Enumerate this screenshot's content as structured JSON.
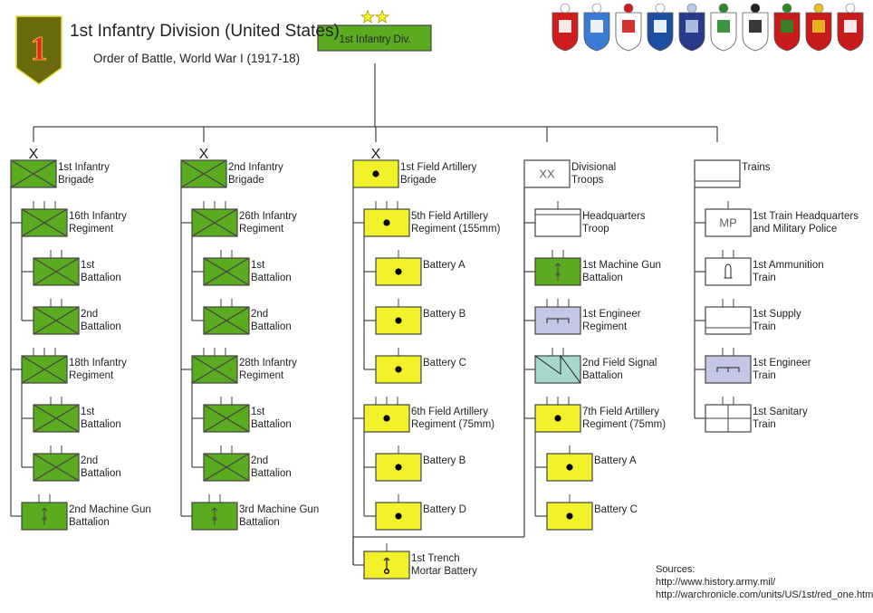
{
  "header": {
    "title": "1st Infantry Division (United States)",
    "subtitle": "Order of Battle, World War I (1917-18)",
    "insignia_numeral": "1",
    "division_label": "1st Infantry Div.",
    "division_rank_stars": 2
  },
  "colors": {
    "infantry": "#5aab1f",
    "artillery": "#f2f22a",
    "engineer": "#c3c6e4",
    "signal": "#a6d6cc",
    "plain": "#ffffff",
    "insignia": "#6b6a0c",
    "insignia_numeral": "#e8261c"
  },
  "columns": [
    {
      "marker": "X",
      "units": [
        {
          "lines": [
            "1st Infantry",
            "Brigade"
          ],
          "symbol": "infantry",
          "fill": "infantry",
          "level": 0
        },
        {
          "lines": [
            "16th Infantry",
            "Regiment"
          ],
          "symbol": "infantry",
          "fill": "infantry",
          "level": 1,
          "ticks": 3
        },
        {
          "lines": [
            "1st",
            "Battalion"
          ],
          "symbol": "infantry",
          "fill": "infantry",
          "level": 2,
          "ticks": 2
        },
        {
          "lines": [
            "2nd",
            "Battalion"
          ],
          "symbol": "infantry",
          "fill": "infantry",
          "level": 2,
          "ticks": 2
        },
        {
          "lines": [
            "18th Infantry",
            "Regiment"
          ],
          "symbol": "infantry",
          "fill": "infantry",
          "level": 1,
          "ticks": 3
        },
        {
          "lines": [
            "1st",
            "Battalion"
          ],
          "symbol": "infantry",
          "fill": "infantry",
          "level": 2,
          "ticks": 2
        },
        {
          "lines": [
            "2nd",
            "Battalion"
          ],
          "symbol": "infantry",
          "fill": "infantry",
          "level": 2,
          "ticks": 2
        },
        {
          "lines": [
            "2nd Machine Gun",
            "Battalion"
          ],
          "symbol": "machine-gun",
          "fill": "infantry",
          "level": 1,
          "ticks": 2
        }
      ]
    },
    {
      "marker": "X",
      "units": [
        {
          "lines": [
            "2nd Infantry",
            "Brigade"
          ],
          "symbol": "infantry",
          "fill": "infantry",
          "level": 0
        },
        {
          "lines": [
            "26th Infantry",
            "Regiment"
          ],
          "symbol": "infantry",
          "fill": "infantry",
          "level": 1,
          "ticks": 3
        },
        {
          "lines": [
            "1st",
            "Battalion"
          ],
          "symbol": "infantry",
          "fill": "infantry",
          "level": 2,
          "ticks": 2
        },
        {
          "lines": [
            "2nd",
            "Battalion"
          ],
          "symbol": "infantry",
          "fill": "infantry",
          "level": 2,
          "ticks": 2
        },
        {
          "lines": [
            "28th Infantry",
            "Regiment"
          ],
          "symbol": "infantry",
          "fill": "infantry",
          "level": 1,
          "ticks": 3
        },
        {
          "lines": [
            "1st",
            "Battalion"
          ],
          "symbol": "infantry",
          "fill": "infantry",
          "level": 2,
          "ticks": 2
        },
        {
          "lines": [
            "2nd",
            "Battalion"
          ],
          "symbol": "infantry",
          "fill": "infantry",
          "level": 2,
          "ticks": 2
        },
        {
          "lines": [
            "3rd Machine Gun",
            "Battalion"
          ],
          "symbol": "machine-gun",
          "fill": "infantry",
          "level": 1,
          "ticks": 2
        }
      ]
    },
    {
      "marker": "X",
      "units": [
        {
          "lines": [
            "1st Field Artillery",
            "Brigade"
          ],
          "symbol": "artillery",
          "fill": "artillery",
          "level": 0
        },
        {
          "lines": [
            "5th Field Artillery",
            "Regiment (155mm)"
          ],
          "symbol": "artillery",
          "fill": "artillery",
          "level": 1,
          "ticks": 3
        },
        {
          "lines": [
            "Battery A"
          ],
          "symbol": "artillery",
          "fill": "artillery",
          "level": 2,
          "ticks": 1
        },
        {
          "lines": [
            "Battery B"
          ],
          "symbol": "artillery",
          "fill": "artillery",
          "level": 2,
          "ticks": 1
        },
        {
          "lines": [
            "Battery C"
          ],
          "symbol": "artillery",
          "fill": "artillery",
          "level": 2,
          "ticks": 1
        },
        {
          "lines": [
            "6th Field Artillery",
            "Regiment (75mm)"
          ],
          "symbol": "artillery",
          "fill": "artillery",
          "level": 1,
          "ticks": 3
        },
        {
          "lines": [
            "Battery B"
          ],
          "symbol": "artillery",
          "fill": "artillery",
          "level": 2,
          "ticks": 1
        },
        {
          "lines": [
            "Battery D"
          ],
          "symbol": "artillery",
          "fill": "artillery",
          "level": 2,
          "ticks": 1
        },
        {
          "lines": [
            "1st Trench",
            "Mortar Battery"
          ],
          "symbol": "trench-mortar",
          "fill": "artillery",
          "level": 1,
          "ticks": 1
        }
      ]
    },
    {
      "marker": "",
      "units": [
        {
          "lines": [
            "Divisional",
            "Troops"
          ],
          "symbol": "division-xx",
          "box_text": "XX",
          "fill": "plain",
          "level": 0
        },
        {
          "lines": [
            "Headquarters",
            "Troop"
          ],
          "symbol": "headquarters",
          "fill": "plain",
          "level": 1,
          "ticks": 1
        },
        {
          "lines": [
            "1st Machine Gun",
            "Battalion"
          ],
          "symbol": "machine-gun",
          "fill": "infantry",
          "level": 1,
          "ticks": 2
        },
        {
          "lines": [
            "1st Engineer",
            "Regiment"
          ],
          "symbol": "engineer",
          "fill": "engineer",
          "level": 1,
          "ticks": 3
        },
        {
          "lines": [
            "2nd Field Signal",
            "Battalion"
          ],
          "symbol": "signal",
          "fill": "signal",
          "level": 1,
          "ticks": 2
        },
        {
          "lines": [
            "7th Field Artillery",
            "Regiment (75mm)"
          ],
          "symbol": "artillery",
          "fill": "artillery",
          "level": 1,
          "ticks": 3
        },
        {
          "lines": [
            "Battery A"
          ],
          "symbol": "artillery",
          "fill": "artillery",
          "level": 2,
          "ticks": 1
        },
        {
          "lines": [
            "Battery C"
          ],
          "symbol": "artillery",
          "fill": "artillery",
          "level": 2,
          "ticks": 1
        }
      ]
    },
    {
      "marker": "",
      "units": [
        {
          "lines": [
            "Trains"
          ],
          "symbol": "train",
          "fill": "plain",
          "level": 0
        },
        {
          "lines": [
            "1st Train Headquarters",
            "and Military Police"
          ],
          "symbol": "military-police",
          "box_text": "MP",
          "fill": "plain",
          "level": 1,
          "ticks": 1
        },
        {
          "lines": [
            "1st Ammunition",
            "Train"
          ],
          "symbol": "ammunition",
          "fill": "plain",
          "level": 1,
          "ticks": 2
        },
        {
          "lines": [
            "1st Supply",
            "Train"
          ],
          "symbol": "train",
          "fill": "plain",
          "level": 1,
          "ticks": 2
        },
        {
          "lines": [
            "1st Engineer",
            "Train"
          ],
          "symbol": "engineer",
          "fill": "engineer",
          "level": 1,
          "ticks": 2
        },
        {
          "lines": [
            "1st Sanitary",
            "Train"
          ],
          "symbol": "sanitary",
          "fill": "plain",
          "level": 1,
          "ticks": 2
        }
      ]
    }
  ],
  "coats_of_arms": [
    "16th-infantry",
    "18th-infantry",
    "26th-infantry",
    "28th-infantry",
    "5th-field-artillery",
    "6th-field-artillery",
    "7th-field-artillery",
    "1st-engineer",
    "signal",
    "machine-gun"
  ],
  "sources": {
    "label": "Sources:",
    "links": [
      "http://www.history.army.mil/",
      "http://warchronicle.com/units/US/1st/red_one.htm"
    ]
  }
}
